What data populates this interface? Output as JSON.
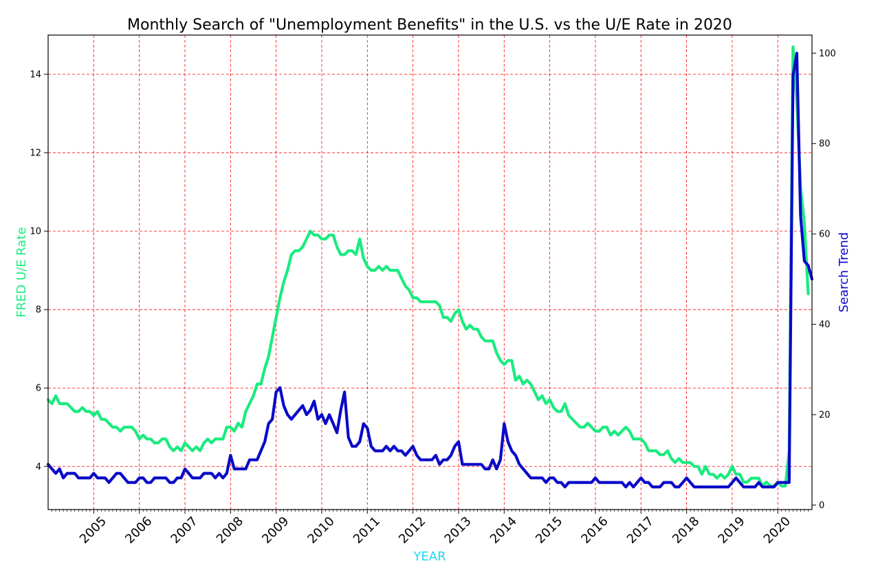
{
  "chart_data": {
    "type": "line",
    "title": "Monthly Search of \"Unemployment Benefits\" in the U.S. vs the U/E Rate in 2020",
    "xlabel": "YEAR",
    "ylabel_left": "FRED U/E Rate",
    "ylabel_right": "Search Trend",
    "xlim": [
      2004.0,
      2020.75
    ],
    "ylim_left": [
      2.9,
      15.0
    ],
    "ylim_right": [
      -1,
      104
    ],
    "x_ticks": [
      "2005",
      "2006",
      "2007",
      "2008",
      "2009",
      "2010",
      "2011",
      "2012",
      "2013",
      "2014",
      "2015",
      "2016",
      "2017",
      "2018",
      "2019",
      "2020"
    ],
    "y_ticks_left": [
      "4",
      "6",
      "8",
      "10",
      "12",
      "14"
    ],
    "y_ticks_right": [
      "0",
      "20",
      "40",
      "60",
      "80",
      "100"
    ],
    "grid": true,
    "x_start": "2004-01",
    "series": [
      {
        "name": "FRED U/E Rate",
        "axis": "left",
        "color": "#1aeb7f",
        "values": [
          5.7,
          5.6,
          5.8,
          5.6,
          5.6,
          5.6,
          5.5,
          5.4,
          5.4,
          5.5,
          5.4,
          5.4,
          5.3,
          5.4,
          5.2,
          5.2,
          5.1,
          5.0,
          5.0,
          4.9,
          5.0,
          5.0,
          5.0,
          4.9,
          4.7,
          4.8,
          4.7,
          4.7,
          4.6,
          4.6,
          4.7,
          4.7,
          4.5,
          4.4,
          4.5,
          4.4,
          4.6,
          4.5,
          4.4,
          4.5,
          4.4,
          4.6,
          4.7,
          4.6,
          4.7,
          4.7,
          4.7,
          5.0,
          5.0,
          4.9,
          5.1,
          5.0,
          5.4,
          5.6,
          5.8,
          6.1,
          6.1,
          6.5,
          6.8,
          7.3,
          7.8,
          8.3,
          8.7,
          9.0,
          9.4,
          9.5,
          9.5,
          9.6,
          9.8,
          10.0,
          9.9,
          9.9,
          9.8,
          9.8,
          9.9,
          9.9,
          9.6,
          9.4,
          9.4,
          9.5,
          9.5,
          9.4,
          9.8,
          9.3,
          9.1,
          9.0,
          9.0,
          9.1,
          9.0,
          9.1,
          9.0,
          9.0,
          9.0,
          8.8,
          8.6,
          8.5,
          8.3,
          8.3,
          8.2,
          8.2,
          8.2,
          8.2,
          8.2,
          8.1,
          7.8,
          7.8,
          7.7,
          7.9,
          8.0,
          7.7,
          7.5,
          7.6,
          7.5,
          7.5,
          7.3,
          7.2,
          7.2,
          7.2,
          6.9,
          6.7,
          6.6,
          6.7,
          6.7,
          6.2,
          6.3,
          6.1,
          6.2,
          6.1,
          5.9,
          5.7,
          5.8,
          5.6,
          5.7,
          5.5,
          5.4,
          5.4,
          5.6,
          5.3,
          5.2,
          5.1,
          5.0,
          5.0,
          5.1,
          5.0,
          4.9,
          4.9,
          5.0,
          5.0,
          4.8,
          4.9,
          4.8,
          4.9,
          5.0,
          4.9,
          4.7,
          4.7,
          4.7,
          4.6,
          4.4,
          4.4,
          4.4,
          4.3,
          4.3,
          4.4,
          4.2,
          4.1,
          4.2,
          4.1,
          4.1,
          4.1,
          4.0,
          4.0,
          3.8,
          4.0,
          3.8,
          3.8,
          3.7,
          3.8,
          3.7,
          3.8,
          4.0,
          3.8,
          3.8,
          3.6,
          3.6,
          3.7,
          3.7,
          3.7,
          3.5,
          3.6,
          3.5,
          3.5,
          3.6,
          3.5,
          3.5,
          4.4,
          14.7,
          13.3,
          11.1,
          10.2,
          8.4
        ]
      },
      {
        "name": "Search Trend",
        "axis": "right",
        "color": "#0a0ac8",
        "values": [
          9,
          8,
          7,
          8,
          6,
          7,
          7,
          7,
          6,
          6,
          6,
          6,
          7,
          6,
          6,
          6,
          5,
          6,
          7,
          7,
          6,
          5,
          5,
          5,
          6,
          6,
          5,
          5,
          6,
          6,
          6,
          6,
          5,
          5,
          6,
          6,
          8,
          7,
          6,
          6,
          6,
          7,
          7,
          7,
          6,
          7,
          6,
          7,
          11,
          8,
          8,
          8,
          8,
          10,
          10,
          10,
          12,
          14,
          18,
          19,
          25,
          26,
          22,
          20,
          19,
          20,
          21,
          22,
          20,
          21,
          23,
          19,
          20,
          18,
          20,
          18,
          16,
          21,
          25,
          15,
          13,
          13,
          14,
          18,
          17,
          13,
          12,
          12,
          12,
          13,
          12,
          13,
          12,
          12,
          11,
          12,
          13,
          11,
          10,
          10,
          10,
          10,
          11,
          9,
          10,
          10,
          11,
          13,
          14,
          9,
          9,
          9,
          9,
          9,
          9,
          8,
          8,
          10,
          8,
          10,
          18,
          14,
          12,
          11,
          9,
          8,
          7,
          6,
          6,
          6,
          6,
          5,
          6,
          6,
          5,
          5,
          4,
          5,
          5,
          5,
          5,
          5,
          5,
          5,
          6,
          5,
          5,
          5,
          5,
          5,
          5,
          5,
          4,
          5,
          4,
          5,
          6,
          5,
          5,
          4,
          4,
          4,
          5,
          5,
          5,
          4,
          4,
          5,
          6,
          5,
          4,
          4,
          4,
          4,
          4,
          4,
          4,
          4,
          4,
          4,
          5,
          6,
          5,
          4,
          4,
          4,
          4,
          5,
          4,
          4,
          4,
          4,
          5,
          5,
          5,
          5,
          95,
          100,
          64,
          54,
          53,
          50
        ]
      }
    ]
  }
}
